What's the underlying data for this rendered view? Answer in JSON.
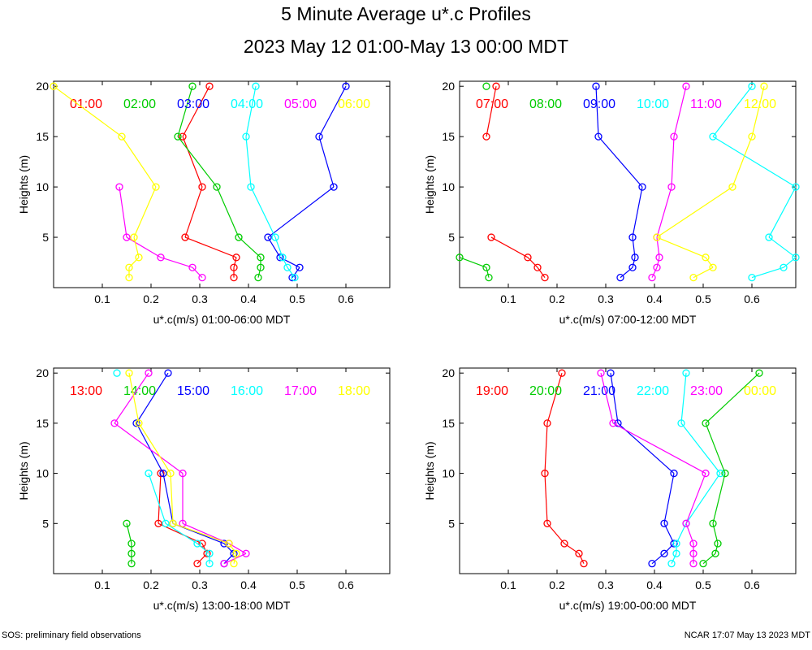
{
  "page": {
    "title": "5 Minute Average u*.c Profiles",
    "subtitle": "2023 May 12 01:00-May 13 00:00 MDT",
    "footer_left": "SOS: preliminary field observations",
    "footer_right": "NCAR 17:07 May 13 2023 MDT"
  },
  "colors": [
    "#ff0000",
    "#00cc00",
    "#0000ff",
    "#00ffff",
    "#ff00ff",
    "#ffff00"
  ],
  "chart_data": [
    {
      "type": "line",
      "xlabel": "u*.c(m/s) 01:00-06:00 MDT",
      "ylabel": "Heights (m)",
      "xlim": [
        0.0,
        0.69
      ],
      "ylim": [
        0.0,
        20.5
      ],
      "xticks": [
        "0.1",
        "0.2",
        "0.3",
        "0.4",
        "0.5",
        "0.6"
      ],
      "yticks": [
        "5",
        "10",
        "15",
        "20"
      ],
      "heights": [
        1,
        2,
        3,
        5,
        10,
        15,
        20
      ],
      "series": [
        {
          "name": "01:00",
          "values": [
            0.37,
            0.37,
            0.375,
            0.27,
            0.305,
            0.265,
            0.32
          ]
        },
        {
          "name": "02:00",
          "values": [
            0.42,
            0.425,
            0.425,
            0.38,
            0.335,
            0.255,
            0.285
          ]
        },
        {
          "name": "03:00",
          "values": [
            0.49,
            0.505,
            0.465,
            0.44,
            0.575,
            0.545,
            0.6
          ]
        },
        {
          "name": "04:00",
          "values": [
            0.495,
            0.48,
            0.47,
            0.455,
            0.405,
            0.395,
            0.415
          ]
        },
        {
          "name": "05:00",
          "values": [
            0.305,
            0.285,
            0.22,
            0.15,
            0.135,
            null,
            null
          ]
        },
        {
          "name": "06:00",
          "values": [
            0.155,
            0.155,
            0.175,
            0.165,
            0.21,
            0.14,
            0.0
          ]
        }
      ]
    },
    {
      "type": "line",
      "xlabel": "u*.c(m/s) 07:00-12:00 MDT",
      "ylabel": "Heights (m)",
      "xlim": [
        0.0,
        0.69
      ],
      "ylim": [
        0.0,
        20.5
      ],
      "xticks": [
        "0.1",
        "0.2",
        "0.3",
        "0.4",
        "0.5",
        "0.6"
      ],
      "yticks": [
        "5",
        "10",
        "15",
        "20"
      ],
      "heights": [
        1,
        2,
        3,
        5,
        10,
        15,
        20
      ],
      "series": [
        {
          "name": "07:00",
          "values": [
            0.175,
            0.16,
            0.14,
            0.065,
            null,
            0.055,
            0.075
          ]
        },
        {
          "name": "08:00",
          "values": [
            0.06,
            0.055,
            0.0,
            null,
            null,
            null,
            0.055
          ]
        },
        {
          "name": "09:00",
          "values": [
            0.33,
            0.355,
            0.36,
            0.355,
            0.375,
            0.285,
            0.28
          ]
        },
        {
          "name": "10:00",
          "values": [
            0.6,
            0.665,
            0.69,
            0.635,
            0.69,
            0.52,
            0.6
          ]
        },
        {
          "name": "11:00",
          "values": [
            0.395,
            0.405,
            0.41,
            0.405,
            0.435,
            0.44,
            0.465
          ]
        },
        {
          "name": "12:00",
          "values": [
            0.48,
            0.52,
            0.505,
            0.405,
            0.56,
            0.6,
            0.625
          ]
        }
      ]
    },
    {
      "type": "line",
      "xlabel": "u*.c(m/s) 13:00-18:00 MDT",
      "ylabel": "Heights (m)",
      "xlim": [
        0.0,
        0.69
      ],
      "ylim": [
        0.0,
        20.5
      ],
      "xticks": [
        "0.1",
        "0.2",
        "0.3",
        "0.4",
        "0.5",
        "0.6"
      ],
      "yticks": [
        "5",
        "10",
        "15",
        "20"
      ],
      "heights": [
        1,
        2,
        3,
        5,
        10,
        15,
        20
      ],
      "series": [
        {
          "name": "13:00",
          "values": [
            0.295,
            0.315,
            0.305,
            0.215,
            0.22,
            null,
            null
          ]
        },
        {
          "name": "14:00",
          "values": [
            0.16,
            0.16,
            0.16,
            0.15,
            null,
            null,
            null
          ]
        },
        {
          "name": "15:00",
          "values": [
            0.35,
            0.37,
            0.35,
            0.245,
            0.225,
            0.17,
            0.235
          ]
        },
        {
          "name": "16:00",
          "values": [
            0.32,
            0.32,
            0.295,
            0.23,
            0.195,
            null,
            0.13
          ]
        },
        {
          "name": "17:00",
          "values": [
            0.35,
            0.395,
            0.36,
            0.265,
            0.265,
            0.125,
            0.195
          ]
        },
        {
          "name": "18:00",
          "values": [
            0.37,
            0.375,
            0.36,
            0.245,
            0.24,
            0.175,
            0.155
          ]
        }
      ]
    },
    {
      "type": "line",
      "xlabel": "u*.c(m/s) 19:00-00:00 MDT",
      "ylabel": "Heights (m)",
      "xlim": [
        0.0,
        0.69
      ],
      "ylim": [
        0.0,
        20.5
      ],
      "xticks": [
        "0.1",
        "0.2",
        "0.3",
        "0.4",
        "0.5",
        "0.6"
      ],
      "yticks": [
        "5",
        "10",
        "15",
        "20"
      ],
      "heights": [
        1,
        2,
        3,
        5,
        10,
        15,
        20
      ],
      "series": [
        {
          "name": "19:00",
          "values": [
            0.255,
            0.245,
            0.215,
            0.18,
            0.175,
            0.18,
            0.21
          ]
        },
        {
          "name": "20:00",
          "values": [
            0.5,
            0.525,
            0.53,
            0.52,
            0.545,
            0.505,
            0.615
          ]
        },
        {
          "name": "21:00",
          "values": [
            0.395,
            0.42,
            0.44,
            0.42,
            0.44,
            0.325,
            0.31
          ]
        },
        {
          "name": "22:00",
          "values": [
            0.435,
            0.445,
            0.445,
            0.465,
            0.535,
            0.455,
            0.465
          ]
        },
        {
          "name": "23:00",
          "values": [
            0.48,
            0.48,
            0.48,
            0.465,
            0.505,
            0.315,
            0.29
          ]
        },
        {
          "name": "00:00",
          "values": [
            null,
            null,
            null,
            null,
            null,
            null,
            null
          ]
        }
      ]
    }
  ]
}
